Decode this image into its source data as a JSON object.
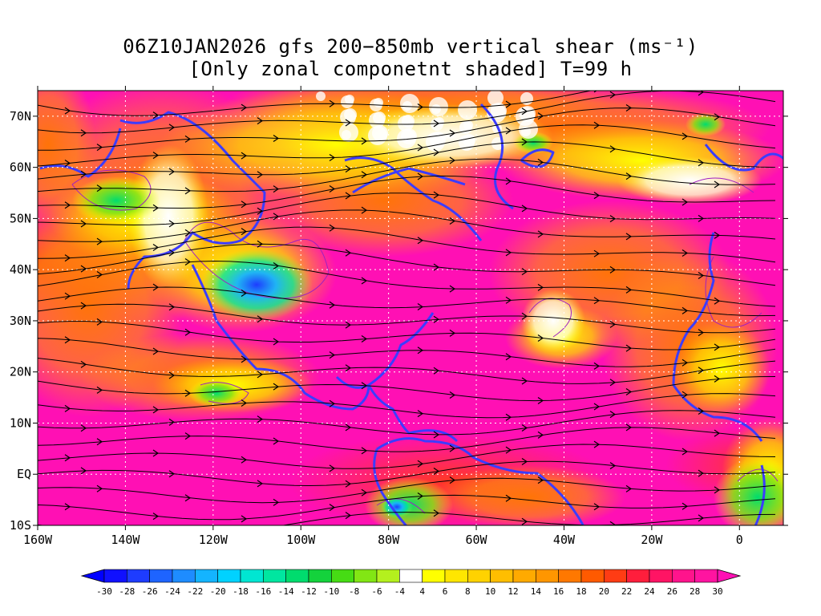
{
  "title": {
    "line1": "06Z10JAN2026 gfs 200−850mb vertical shear (ms⁻¹)",
    "line2": "[Only zonal componetnt shaded] T=99 h"
  },
  "map": {
    "lon_range": [
      -160,
      10
    ],
    "lat_range": [
      -10,
      75
    ],
    "y_tick_labels": [
      {
        "lat": 70,
        "label": "70N"
      },
      {
        "lat": 60,
        "label": "60N"
      },
      {
        "lat": 50,
        "label": "50N"
      },
      {
        "lat": 40,
        "label": "40N"
      },
      {
        "lat": 30,
        "label": "30N"
      },
      {
        "lat": 20,
        "label": "20N"
      },
      {
        "lat": 10,
        "label": "10N"
      },
      {
        "lat": 0,
        "label": "EQ"
      },
      {
        "lat": -10,
        "label": "10S"
      }
    ],
    "x_tick_labels": [
      {
        "lon": -160,
        "label": "160W"
      },
      {
        "lon": -140,
        "label": "140W"
      },
      {
        "lon": -120,
        "label": "120W"
      },
      {
        "lon": -100,
        "label": "100W"
      },
      {
        "lon": -80,
        "label": "80W"
      },
      {
        "lon": -60,
        "label": "60W"
      },
      {
        "lon": -40,
        "label": "40W"
      },
      {
        "lon": -20,
        "label": "20W"
      },
      {
        "lon": 0,
        "label": "0"
      }
    ],
    "grid_lines": true,
    "colors": {
      "coastline": "#3c3cff",
      "streamline": "#000000",
      "contour": "#a020c0",
      "grid": "#ffffff"
    }
  },
  "colorbar": {
    "labels": [
      "-30",
      "-28",
      "-26",
      "-24",
      "-22",
      "-20",
      "-18",
      "-16",
      "-14",
      "-12",
      "-10",
      "-8",
      "-6",
      "-4",
      "4",
      "6",
      "8",
      "10",
      "12",
      "14",
      "16",
      "18",
      "20",
      "22",
      "24",
      "26",
      "28",
      "30"
    ],
    "colors": [
      "#1010ff",
      "#1e3cff",
      "#1e64ff",
      "#1e8cff",
      "#14b4ff",
      "#00d2ff",
      "#00e6d2",
      "#00e6a0",
      "#00dc6e",
      "#14d23c",
      "#46dc14",
      "#82e614",
      "#b4f01e",
      "#ffffff",
      "#ffff00",
      "#ffe600",
      "#ffd200",
      "#ffbe00",
      "#ffaa00",
      "#ff9600",
      "#ff7800",
      "#ff5a00",
      "#ff3c14",
      "#ff1e3c",
      "#ff1464",
      "#ff148c",
      "#ff14a0"
    ],
    "under_color": "#0000ff",
    "over_color": "#ff10b4"
  }
}
